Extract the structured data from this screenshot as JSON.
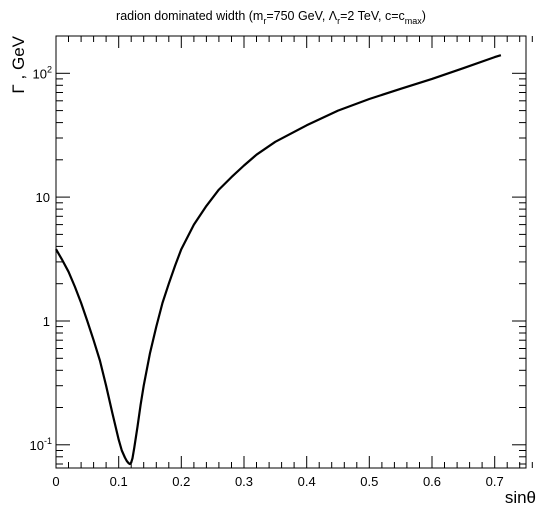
{
  "chart_data": {
    "type": "line",
    "title": {
      "prefix": "radion dominated width (m",
      "m_sub": "r",
      "part2": "=750 GeV, Λ",
      "lambda_sub": "r",
      "part3": "=2 TeV, c=c",
      "c_sub": "max",
      "suffix": ")"
    },
    "xlabel": "sinθ",
    "ylabel": "Γ , GeV",
    "xlim": [
      0,
      0.75
    ],
    "ylim": [
      0.065,
      200
    ],
    "yscale": "log",
    "grid": false,
    "x_ticks": [
      {
        "value": 0,
        "label": "0"
      },
      {
        "value": 0.1,
        "label": "0.1"
      },
      {
        "value": 0.2,
        "label": "0.2"
      },
      {
        "value": 0.3,
        "label": "0.3"
      },
      {
        "value": 0.4,
        "label": "0.4"
      },
      {
        "value": 0.5,
        "label": "0.5"
      },
      {
        "value": 0.6,
        "label": "0.6"
      },
      {
        "value": 0.7,
        "label": "0.7"
      }
    ],
    "y_ticks": [
      {
        "value": 0.1,
        "base": "10",
        "exp": "-1",
        "label": ""
      },
      {
        "value": 1,
        "base": "",
        "exp": "",
        "label": "1"
      },
      {
        "value": 10,
        "base": "",
        "exp": "",
        "label": "10"
      },
      {
        "value": 100,
        "base": "10",
        "exp": "2",
        "label": ""
      }
    ],
    "series": [
      {
        "color": "#000000",
        "x": [
          0.0,
          0.01,
          0.02,
          0.03,
          0.04,
          0.05,
          0.06,
          0.07,
          0.08,
          0.09,
          0.1,
          0.105,
          0.11,
          0.113,
          0.116,
          0.118,
          0.12,
          0.122,
          0.125,
          0.13,
          0.135,
          0.14,
          0.15,
          0.16,
          0.17,
          0.18,
          0.19,
          0.2,
          0.22,
          0.24,
          0.26,
          0.28,
          0.3,
          0.32,
          0.35,
          0.4,
          0.45,
          0.5,
          0.55,
          0.6,
          0.65,
          0.7,
          0.71
        ],
        "y": [
          3.8,
          3.1,
          2.5,
          1.9,
          1.4,
          1.0,
          0.7,
          0.48,
          0.3,
          0.18,
          0.11,
          0.09,
          0.079,
          0.074,
          0.071,
          0.07,
          0.072,
          0.078,
          0.095,
          0.14,
          0.21,
          0.3,
          0.55,
          0.9,
          1.4,
          2.0,
          2.8,
          3.8,
          6.0,
          8.5,
          11.5,
          14.5,
          18.0,
          22.0,
          28.0,
          38.0,
          50.0,
          62.0,
          75.0,
          90.0,
          110.0,
          135.0,
          140.0
        ]
      }
    ]
  }
}
